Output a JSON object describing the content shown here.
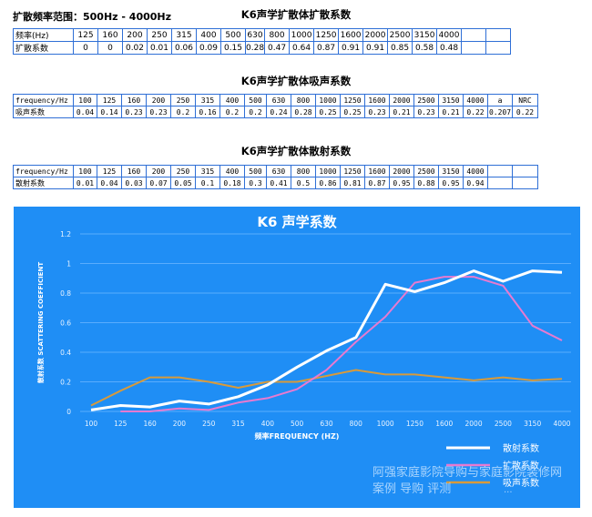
{
  "range_label": "扩散频率范围：500Hz - 4000Hz",
  "table1": {
    "title": "K6声学扩散体扩散系数",
    "row1_header": "频率(Hz)",
    "row2_header": "扩散系数",
    "freqs": [
      "125",
      "160",
      "200",
      "250",
      "315",
      "400",
      "500",
      "630",
      "800",
      "1000",
      "1250",
      "1600",
      "2000",
      "2500",
      "3150",
      "4000",
      "",
      ""
    ],
    "values": [
      "0",
      "0",
      "0.02",
      "0.01",
      "0.06",
      "0.09",
      "0.15",
      "0.28",
      "0.47",
      "0.64",
      "0.87",
      "0.91",
      "0.91",
      "0.85",
      "0.58",
      "0.48",
      "",
      ""
    ]
  },
  "table2": {
    "title": "K6声学扩散体吸声系数",
    "row1_header": "frequency/Hz",
    "row2_header": "吸声系数",
    "freqs": [
      "100",
      "125",
      "160",
      "200",
      "250",
      "315",
      "400",
      "500",
      "630",
      "800",
      "1000",
      "1250",
      "1600",
      "2000",
      "2500",
      "3150",
      "4000",
      "a",
      "NRC"
    ],
    "values": [
      "0.04",
      "0.14",
      "0.23",
      "0.23",
      "0.2",
      "0.16",
      "0.2",
      "0.2",
      "0.24",
      "0.28",
      "0.25",
      "0.25",
      "0.23",
      "0.21",
      "0.23",
      "0.21",
      "0.22",
      "0.207",
      "0.22"
    ]
  },
  "table3": {
    "title": "K6声学扩散体散射系数",
    "row1_header": "frequency/Hz",
    "row2_header": "散射系数",
    "freqs": [
      "100",
      "125",
      "160",
      "200",
      "250",
      "315",
      "400",
      "500",
      "630",
      "800",
      "1000",
      "1250",
      "1600",
      "2000",
      "2500",
      "3150",
      "4000",
      "",
      ""
    ],
    "values": [
      "0.01",
      "0.04",
      "0.03",
      "0.07",
      "0.05",
      "0.1",
      "0.18",
      "0.3",
      "0.41",
      "0.5",
      "0.86",
      "0.81",
      "0.87",
      "0.95",
      "0.88",
      "0.95",
      "0.94",
      "",
      ""
    ]
  },
  "watermark": {
    "line1": "阿强家庭影院导购与家庭影院装修网",
    "line2": "案例 导购 评测",
    "url": "..."
  },
  "chart_data": {
    "type": "line",
    "title": "K6  声学系数",
    "xlabel": "频率FREQUENCY (HZ)",
    "ylabel": "散射系数 SCATTERING COEFFICIENT",
    "categories": [
      "100",
      "125",
      "160",
      "200",
      "250",
      "315",
      "400",
      "500",
      "630",
      "800",
      "1000",
      "1250",
      "1600",
      "2000",
      "2500",
      "3150",
      "4000"
    ],
    "yticks": [
      "0",
      "0.2",
      "0.4",
      "0.6",
      "0.8",
      "1",
      "1.2"
    ],
    "ylim": [
      0,
      1.2
    ],
    "grid": true,
    "legend_position": "bottom-right",
    "series": [
      {
        "name": "散射系数",
        "color": "#ffffff",
        "values": [
          0.01,
          0.04,
          0.03,
          0.07,
          0.05,
          0.1,
          0.18,
          0.3,
          0.41,
          0.5,
          0.86,
          0.81,
          0.87,
          0.95,
          0.88,
          0.95,
          0.94
        ]
      },
      {
        "name": "扩散系数",
        "color": "#e87ad0",
        "values": [
          null,
          0,
          0,
          0.02,
          0.01,
          0.06,
          0.09,
          0.15,
          0.28,
          0.47,
          0.64,
          0.87,
          0.91,
          0.91,
          0.85,
          0.58,
          0.48
        ]
      },
      {
        "name": "吸声系数",
        "color": "#d89a3a",
        "values": [
          0.04,
          0.14,
          0.23,
          0.23,
          0.2,
          0.16,
          0.2,
          0.2,
          0.24,
          0.28,
          0.25,
          0.25,
          0.23,
          0.21,
          0.23,
          0.21,
          0.22
        ]
      }
    ]
  }
}
